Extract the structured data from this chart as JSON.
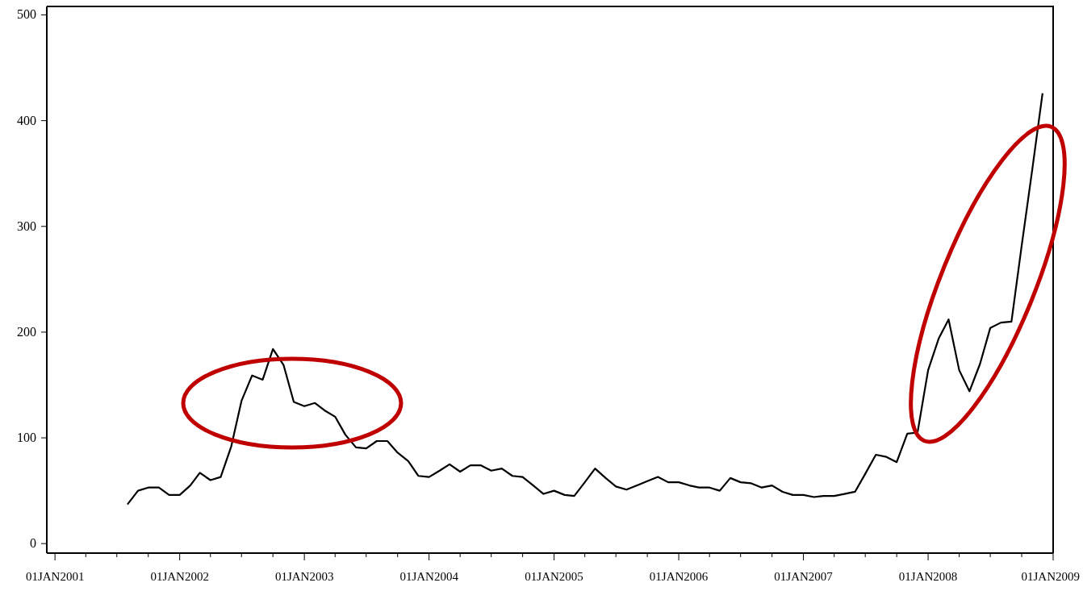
{
  "chart_data": {
    "type": "line",
    "x": [
      "2001-08",
      "2001-09",
      "2001-10",
      "2001-11",
      "2001-12",
      "2002-01",
      "2002-02",
      "2002-03",
      "2002-04",
      "2002-05",
      "2002-06",
      "2002-07",
      "2002-08",
      "2002-09",
      "2002-10",
      "2002-11",
      "2002-12",
      "2003-01",
      "2003-02",
      "2003-03",
      "2003-04",
      "2003-05",
      "2003-06",
      "2003-07",
      "2003-08",
      "2003-09",
      "2003-10",
      "2003-11",
      "2003-12",
      "2004-01",
      "2004-02",
      "2004-03",
      "2004-04",
      "2004-05",
      "2004-06",
      "2004-07",
      "2004-08",
      "2004-09",
      "2004-10",
      "2004-11",
      "2004-12",
      "2005-01",
      "2005-02",
      "2005-03",
      "2005-04",
      "2005-05",
      "2005-06",
      "2005-07",
      "2005-08",
      "2005-09",
      "2005-10",
      "2005-11",
      "2005-12",
      "2006-01",
      "2006-02",
      "2006-03",
      "2006-04",
      "2006-05",
      "2006-06",
      "2006-07",
      "2006-08",
      "2006-09",
      "2006-10",
      "2006-11",
      "2006-12",
      "2007-01",
      "2007-02",
      "2007-03",
      "2007-04",
      "2007-05",
      "2007-06",
      "2007-07",
      "2007-08",
      "2007-09",
      "2007-10",
      "2007-11",
      "2007-12",
      "2008-01",
      "2008-02",
      "2008-03",
      "2008-04",
      "2008-05",
      "2008-06",
      "2008-07",
      "2008-08",
      "2008-09",
      "2008-10",
      "2008-11",
      "2008-12"
    ],
    "series": [
      {
        "color": "#000000",
        "values": [
          37,
          50,
          53,
          53,
          46,
          46,
          55,
          67,
          60,
          63,
          92,
          135,
          159,
          155,
          184,
          169,
          134,
          130,
          133,
          126,
          120,
          103,
          91,
          90,
          97,
          97,
          86,
          78,
          64,
          63,
          69,
          75,
          68,
          74,
          74,
          69,
          71,
          64,
          63,
          55,
          47,
          50,
          46,
          45,
          58,
          71,
          62,
          54,
          51,
          55,
          59,
          63,
          58,
          58,
          55,
          53,
          53,
          50,
          62,
          58,
          57,
          53,
          55,
          49,
          46,
          46,
          44,
          45,
          45,
          47,
          49,
          66,
          84,
          82,
          77,
          104,
          105,
          164,
          194,
          212,
          164,
          144,
          170,
          204,
          209,
          210,
          282,
          354,
          426
        ]
      }
    ],
    "xlim": [
      "2000-12-08",
      "2009-01-01"
    ],
    "xticks": [
      {
        "value": "2001-01-01",
        "label": "01JAN2001"
      },
      {
        "value": "2001-04-01",
        "label": null
      },
      {
        "value": "2001-07-01",
        "label": null
      },
      {
        "value": "2001-10-01",
        "label": null
      },
      {
        "value": "2002-01-01",
        "label": "01JAN2002"
      },
      {
        "value": "2002-04-01",
        "label": null
      },
      {
        "value": "2002-07-01",
        "label": null
      },
      {
        "value": "2002-10-01",
        "label": null
      },
      {
        "value": "2003-01-01",
        "label": "01JAN2003"
      },
      {
        "value": "2003-04-01",
        "label": null
      },
      {
        "value": "2003-07-01",
        "label": null
      },
      {
        "value": "2003-10-01",
        "label": null
      },
      {
        "value": "2004-01-01",
        "label": "01JAN2004"
      },
      {
        "value": "2004-04-01",
        "label": null
      },
      {
        "value": "2004-07-01",
        "label": null
      },
      {
        "value": "2004-10-01",
        "label": null
      },
      {
        "value": "2005-01-01",
        "label": "01JAN2005"
      },
      {
        "value": "2005-04-01",
        "label": null
      },
      {
        "value": "2005-07-01",
        "label": null
      },
      {
        "value": "2005-10-01",
        "label": null
      },
      {
        "value": "2006-01-01",
        "label": "01JAN2006"
      },
      {
        "value": "2006-04-01",
        "label": null
      },
      {
        "value": "2006-07-01",
        "label": null
      },
      {
        "value": "2006-10-01",
        "label": null
      },
      {
        "value": "2007-01-01",
        "label": "01JAN2007"
      },
      {
        "value": "2007-04-01",
        "label": null
      },
      {
        "value": "2007-07-01",
        "label": null
      },
      {
        "value": "2007-10-01",
        "label": null
      },
      {
        "value": "2008-01-01",
        "label": "01JAN2008"
      },
      {
        "value": "2008-04-01",
        "label": null
      },
      {
        "value": "2008-07-01",
        "label": null
      },
      {
        "value": "2008-10-01",
        "label": null
      },
      {
        "value": "2009-01-01",
        "label": "01JAN2009"
      }
    ],
    "ylim": [
      -9,
      508
    ],
    "yticks": [
      0,
      100,
      200,
      300,
      400,
      500
    ],
    "marker": "none",
    "line_style": "solid"
  }
}
